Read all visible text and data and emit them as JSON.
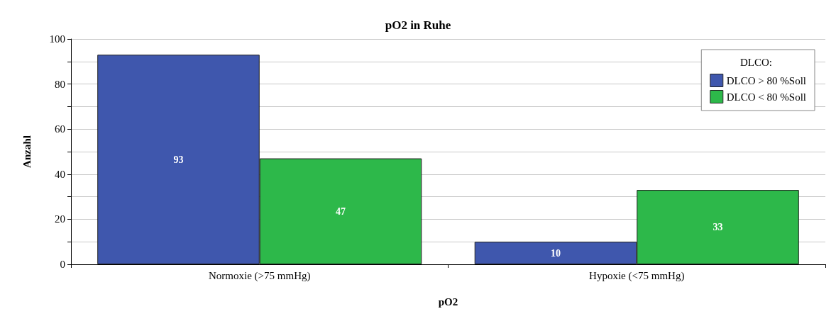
{
  "chart_data": {
    "type": "bar",
    "title": "pO2 in Ruhe",
    "xlabel": "pO2",
    "ylabel": "Anzahl",
    "legend_title": "DLCO:",
    "categories": [
      "Normoxie (>75 mmHg)",
      "Hypoxie (<75 mmHg)"
    ],
    "series": [
      {
        "name": "DLCO > 80 %Soll",
        "color": "#3f57ad",
        "values": [
          93,
          10
        ]
      },
      {
        "name": "DLCO < 80 %Soll",
        "color": "#2db84a",
        "values": [
          47,
          33
        ]
      }
    ],
    "ylim": [
      0,
      100
    ],
    "yticks": [
      0,
      {
        "value": 10,
        "label": null
      },
      20,
      {
        "value": 30,
        "label": null
      },
      40,
      {
        "value": 50,
        "label": null
      },
      60,
      {
        "value": 70,
        "label": null
      },
      80,
      {
        "value": 90,
        "label": null
      },
      100
    ],
    "grid": "y",
    "legend": "top right",
    "data_labels": true
  }
}
